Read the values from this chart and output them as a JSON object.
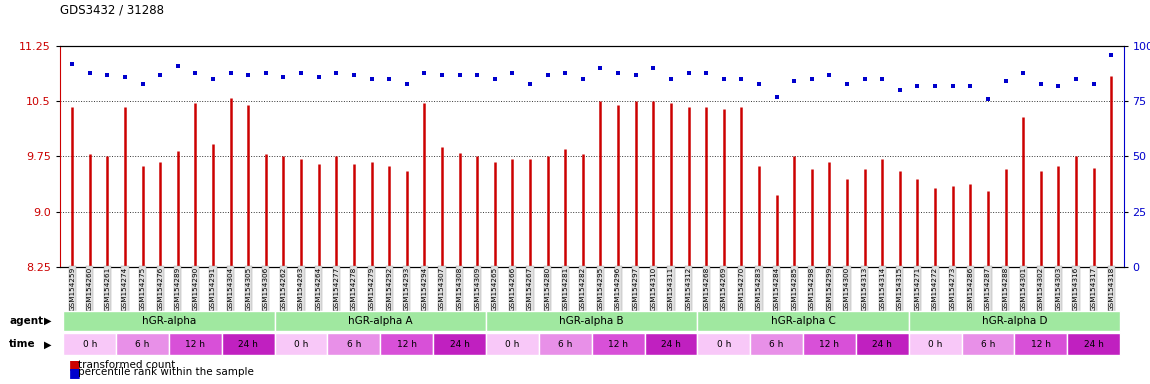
{
  "title": "GDS3432 / 31288",
  "samples": [
    "GSM154259",
    "GSM154260",
    "GSM154261",
    "GSM154274",
    "GSM154275",
    "GSM154276",
    "GSM154289",
    "GSM154290",
    "GSM154291",
    "GSM154304",
    "GSM154305",
    "GSM154306",
    "GSM154262",
    "GSM154263",
    "GSM154264",
    "GSM154277",
    "GSM154278",
    "GSM154279",
    "GSM154292",
    "GSM154293",
    "GSM154294",
    "GSM154307",
    "GSM154308",
    "GSM154309",
    "GSM154265",
    "GSM154266",
    "GSM154267",
    "GSM154280",
    "GSM154281",
    "GSM154282",
    "GSM154295",
    "GSM154296",
    "GSM154297",
    "GSM154310",
    "GSM154311",
    "GSM154312",
    "GSM154268",
    "GSM154269",
    "GSM154270",
    "GSM154283",
    "GSM154284",
    "GSM154285",
    "GSM154298",
    "GSM154299",
    "GSM154300",
    "GSM154313",
    "GSM154314",
    "GSM154315",
    "GSM154271",
    "GSM154272",
    "GSM154273",
    "GSM154286",
    "GSM154287",
    "GSM154288",
    "GSM154301",
    "GSM154302",
    "GSM154303",
    "GSM154316",
    "GSM154317",
    "GSM154318"
  ],
  "red_values": [
    10.42,
    9.78,
    9.75,
    10.42,
    9.62,
    9.68,
    9.83,
    10.48,
    9.92,
    10.55,
    10.45,
    9.78,
    9.75,
    9.72,
    9.65,
    9.75,
    9.65,
    9.68,
    9.62,
    9.55,
    10.48,
    9.88,
    9.8,
    9.75,
    9.68,
    9.72,
    9.72,
    9.75,
    9.85,
    9.78,
    10.5,
    10.45,
    10.5,
    10.5,
    10.48,
    10.42,
    10.42,
    10.4,
    10.42,
    9.62,
    9.22,
    9.75,
    9.58,
    9.68,
    9.45,
    9.58,
    9.72,
    9.55,
    9.45,
    9.32,
    9.35,
    9.38,
    9.28,
    9.58,
    10.28,
    9.55,
    9.62,
    9.75,
    9.6,
    10.85
  ],
  "blue_values": [
    92,
    88,
    87,
    86,
    83,
    87,
    91,
    88,
    85,
    88,
    87,
    88,
    86,
    88,
    86,
    88,
    87,
    85,
    85,
    83,
    88,
    87,
    87,
    87,
    85,
    88,
    83,
    87,
    88,
    85,
    90,
    88,
    87,
    90,
    85,
    88,
    88,
    85,
    85,
    83,
    77,
    84,
    85,
    87,
    83,
    85,
    85,
    80,
    82,
    82,
    82,
    82,
    76,
    84,
    88,
    83,
    82,
    85,
    83,
    96
  ],
  "ylim_left": [
    8.25,
    11.25
  ],
  "ylim_right": [
    0,
    100
  ],
  "yticks_left": [
    8.25,
    9.0,
    9.75,
    10.5,
    11.25
  ],
  "yticks_right": [
    0,
    25,
    50,
    75,
    100
  ],
  "group_ranges": [
    [
      0,
      11,
      "hGR-alpha"
    ],
    [
      12,
      23,
      "hGR-alpha A"
    ],
    [
      24,
      35,
      "hGR-alpha B"
    ],
    [
      36,
      47,
      "hGR-alpha C"
    ],
    [
      48,
      59,
      "hGR-alpha D"
    ]
  ],
  "time_colors": [
    "#f8c8f8",
    "#e890e8",
    "#d850d8",
    "#c020c0"
  ],
  "time_labels": [
    "0 h",
    "6 h",
    "12 h",
    "24 h"
  ],
  "agent_color": "#a0e8a0",
  "bar_color": "#cc0000",
  "dot_color": "#0000cc",
  "background_color": "#ffffff",
  "left_axis_color": "#cc0000",
  "right_axis_color": "#0000cc",
  "grid_color": "#333333"
}
